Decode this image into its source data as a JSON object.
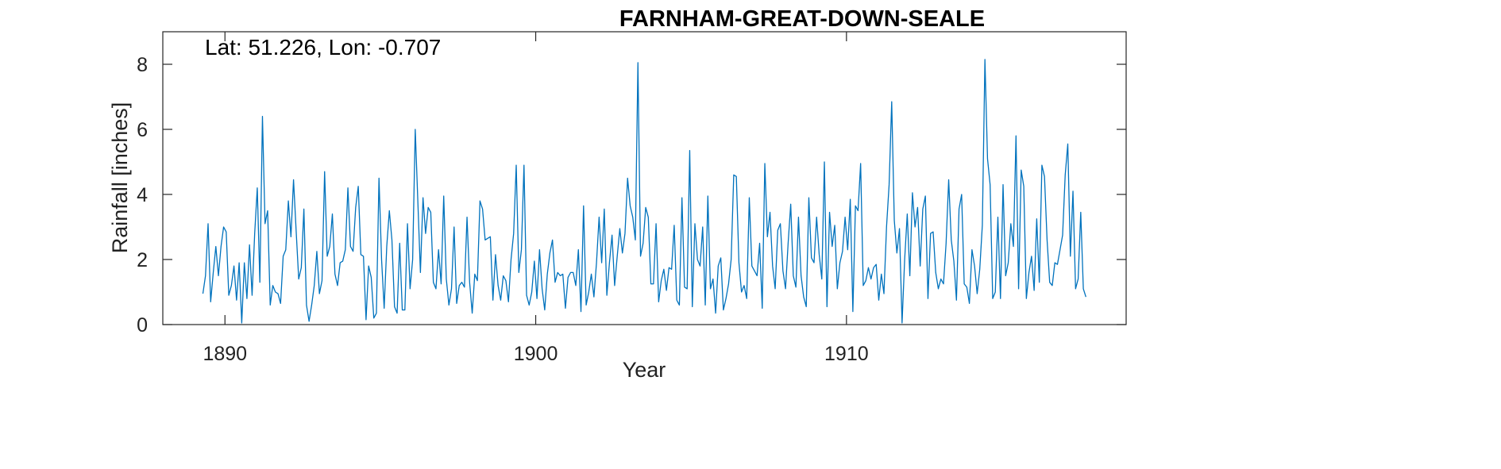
{
  "chart_data": {
    "type": "line",
    "title": "FARNHAM-GREAT-DOWN-SEALE",
    "annotation": "Lat: 51.226, Lon: -0.707",
    "xlabel": "Year",
    "ylabel": "Rainfall [inches]",
    "xlim": [
      1888,
      1919
    ],
    "ylim": [
      0,
      9
    ],
    "xticks": [
      1890,
      1900,
      1910
    ],
    "yticks": [
      0,
      2,
      4,
      6,
      8
    ],
    "grid": false,
    "series": [
      {
        "color": "#0072BD",
        "x_start": 1889.29,
        "x_step": 0.08333,
        "values": [
          0.95,
          1.5,
          3.1,
          0.7,
          1.6,
          2.4,
          1.5,
          2.4,
          3.0,
          2.85,
          0.9,
          1.2,
          1.8,
          0.75,
          1.9,
          0.05,
          1.9,
          0.8,
          2.45,
          0.9,
          2.8,
          4.2,
          1.3,
          6.4,
          3.1,
          3.5,
          0.6,
          1.2,
          1.0,
          0.95,
          0.65,
          2.1,
          2.3,
          3.8,
          2.7,
          4.45,
          2.9,
          1.4,
          1.75,
          3.55,
          0.6,
          0.1,
          0.6,
          1.2,
          2.25,
          0.95,
          1.35,
          4.7,
          2.1,
          2.4,
          3.4,
          1.55,
          1.2,
          1.9,
          1.95,
          2.3,
          4.2,
          2.4,
          2.25,
          3.6,
          4.25,
          2.15,
          2.1,
          0.15,
          1.8,
          1.45,
          0.2,
          0.35,
          4.5,
          2.0,
          0.5,
          2.4,
          3.5,
          2.6,
          0.55,
          0.35,
          2.5,
          0.45,
          0.45,
          3.1,
          1.1,
          2.0,
          6.0,
          3.8,
          1.6,
          3.9,
          2.8,
          3.6,
          3.45,
          1.3,
          1.1,
          2.3,
          1.25,
          3.95,
          1.4,
          0.6,
          1.1,
          3.0,
          0.65,
          1.2,
          1.3,
          1.15,
          3.3,
          1.3,
          0.35,
          1.55,
          1.35,
          3.8,
          3.55,
          2.6,
          2.65,
          2.7,
          0.75,
          2.15,
          1.2,
          0.75,
          1.5,
          1.35,
          0.7,
          2.0,
          2.8,
          4.9,
          1.6,
          2.3,
          4.9,
          0.9,
          0.6,
          1.0,
          1.95,
          0.8,
          2.3,
          1.1,
          0.45,
          1.55,
          2.2,
          2.6,
          1.3,
          1.6,
          1.5,
          1.55,
          0.5,
          1.45,
          1.6,
          1.6,
          1.2,
          2.3,
          0.4,
          3.65,
          0.6,
          1.0,
          1.55,
          0.85,
          1.9,
          3.3,
          1.9,
          3.55,
          0.9,
          1.9,
          2.75,
          1.2,
          2.1,
          2.95,
          2.2,
          2.8,
          4.5,
          3.65,
          3.3,
          2.6,
          8.05,
          2.1,
          2.5,
          3.6,
          3.3,
          1.25,
          1.25,
          3.1,
          0.7,
          1.35,
          1.7,
          1.05,
          1.75,
          1.7,
          3.05,
          0.75,
          0.6,
          3.9,
          1.15,
          1.1,
          5.35,
          0.55,
          3.1,
          2.0,
          1.8,
          3.0,
          0.6,
          3.95,
          1.1,
          1.4,
          0.35,
          1.8,
          2.05,
          0.45,
          0.8,
          1.25,
          2.0,
          4.6,
          4.55,
          1.9,
          1.0,
          1.2,
          0.8,
          3.9,
          1.8,
          1.65,
          1.5,
          2.5,
          0.5,
          4.95,
          2.7,
          3.45,
          1.8,
          1.1,
          2.9,
          3.1,
          1.65,
          1.1,
          2.5,
          3.7,
          1.5,
          1.15,
          3.3,
          1.5,
          0.85,
          0.55,
          3.9,
          2.05,
          1.9,
          3.3,
          2.15,
          1.4,
          5.0,
          0.55,
          3.45,
          2.4,
          3.05,
          1.1,
          1.9,
          2.25,
          3.3,
          2.3,
          3.85,
          0.4,
          3.65,
          3.5,
          4.95,
          1.2,
          1.35,
          1.75,
          1.4,
          1.75,
          1.85,
          0.75,
          1.55,
          0.95,
          3.0,
          4.3,
          6.85,
          3.2,
          2.2,
          2.95,
          0.05,
          2.0,
          3.4,
          1.5,
          4.05,
          3.0,
          3.6,
          1.8,
          3.55,
          3.95,
          0.8,
          2.8,
          2.85,
          1.6,
          1.1,
          1.4,
          1.25,
          2.5,
          4.45,
          2.6,
          1.95,
          0.75,
          3.55,
          4.0,
          1.25,
          1.15,
          0.65,
          2.3,
          1.8,
          0.95,
          1.7,
          3.05,
          8.15,
          5.1,
          4.3,
          0.8,
          1.0,
          3.3,
          0.8,
          4.3,
          1.5,
          1.9,
          3.1,
          2.4,
          5.8,
          1.1,
          4.75,
          4.25,
          0.8,
          1.6,
          2.1,
          1.05,
          3.25,
          1.3,
          4.9,
          4.55,
          2.6,
          1.3,
          1.2,
          1.9,
          1.85,
          2.3,
          2.75,
          4.6,
          5.55,
          2.1,
          4.1,
          1.1,
          1.4,
          3.45,
          1.1,
          0.85
        ]
      }
    ]
  }
}
